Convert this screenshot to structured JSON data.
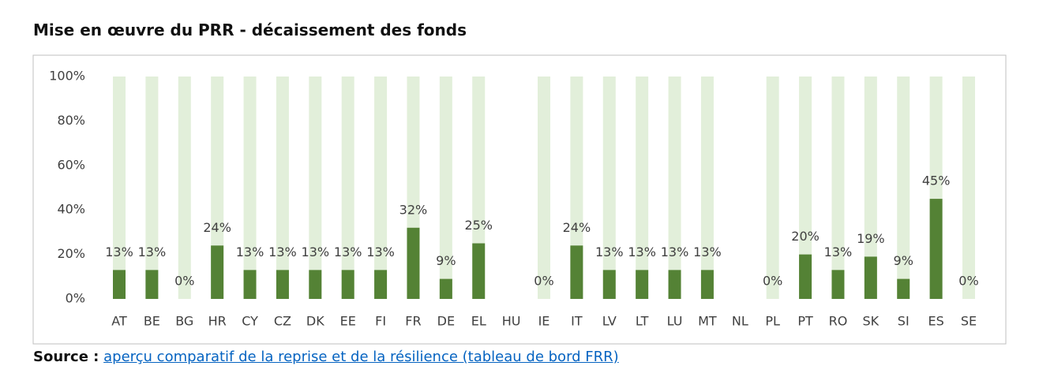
{
  "chart_data": {
    "type": "bar",
    "title": "Mise en œuvre du PRR - décaissement des fonds",
    "categories": [
      "AT",
      "BE",
      "BG",
      "HR",
      "CY",
      "CZ",
      "DK",
      "EE",
      "FI",
      "FR",
      "DE",
      "EL",
      "HU",
      "IE",
      "IT",
      "LV",
      "LT",
      "LU",
      "MT",
      "NL",
      "PL",
      "PT",
      "RO",
      "SK",
      "SI",
      "ES",
      "SE"
    ],
    "series": [
      {
        "color": "#e2efda",
        "values": [
          100,
          100,
          100,
          100,
          100,
          100,
          100,
          100,
          100,
          100,
          100,
          100,
          null,
          100,
          100,
          100,
          100,
          100,
          100,
          null,
          100,
          100,
          100,
          100,
          100,
          100,
          100
        ]
      },
      {
        "color": "#548235",
        "values": [
          13,
          13,
          0,
          24,
          13,
          13,
          13,
          13,
          13,
          32,
          9,
          25,
          null,
          0,
          24,
          13,
          13,
          13,
          13,
          null,
          0,
          20,
          13,
          19,
          9,
          45,
          0
        ],
        "value_labels": [
          "13%",
          "13%",
          "0%",
          "24%",
          "13%",
          "13%",
          "13%",
          "13%",
          "13%",
          "32%",
          "9%",
          "25%",
          null,
          "0%",
          "24%",
          "13%",
          "13%",
          "13%",
          "13%",
          null,
          "0%",
          "20%",
          "13%",
          "19%",
          "9%",
          "45%",
          "0%"
        ]
      }
    ],
    "ylim": [
      0,
      100
    ],
    "yticks": [
      {
        "value": 0,
        "label": "0%"
      },
      {
        "value": 20,
        "label": "20%"
      },
      {
        "value": 40,
        "label": "40%"
      },
      {
        "value": 60,
        "label": "60%"
      },
      {
        "value": 80,
        "label": "80%"
      },
      {
        "value": 100,
        "label": "100%"
      }
    ],
    "source_label": "Source :",
    "source_link": "aperçu comparatif de la reprise et de la résilience (tableau de bord FRR)"
  }
}
